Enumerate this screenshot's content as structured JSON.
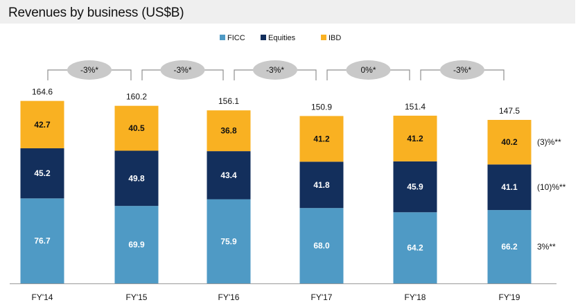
{
  "chart_data": {
    "type": "bar",
    "stacked": true,
    "title": "Revenues by business (US$B)",
    "xlabel": "",
    "ylabel": "",
    "categories": [
      "FY'14",
      "FY'15",
      "FY'16",
      "FY'17",
      "FY'18",
      "FY'19"
    ],
    "series": [
      {
        "name": "FICC",
        "color": "#4f9ac5",
        "values": [
          76.7,
          69.9,
          75.9,
          68.0,
          64.2,
          66.2
        ]
      },
      {
        "name": "Equities",
        "color": "#132f5c",
        "values": [
          45.2,
          49.8,
          43.4,
          41.8,
          45.9,
          41.1
        ]
      },
      {
        "name": "IBD",
        "color": "#f9b122",
        "values": [
          42.7,
          40.5,
          36.8,
          41.2,
          41.2,
          40.2
        ]
      }
    ],
    "totals": [
      "164.6",
      "160.2",
      "156.1",
      "150.9",
      "151.4",
      "147.5"
    ],
    "value_labels": [
      [
        "76.7",
        "69.9",
        "75.9",
        "68.0",
        "64.2",
        "66.2"
      ],
      [
        "45.2",
        "49.8",
        "43.4",
        "41.8",
        "45.9",
        "41.1"
      ],
      [
        "42.7",
        "40.5",
        "36.8",
        "41.2",
        "41.2",
        "40.2"
      ]
    ],
    "growth_labels": [
      "-3%*",
      "-3%*",
      "-3%*",
      "0%*",
      "-3%*"
    ],
    "series_change_labels": [
      "3%**",
      "(10)%**",
      "(3)%**"
    ],
    "ylim": [
      0,
      170
    ],
    "legend": "top-center",
    "grid": false
  }
}
